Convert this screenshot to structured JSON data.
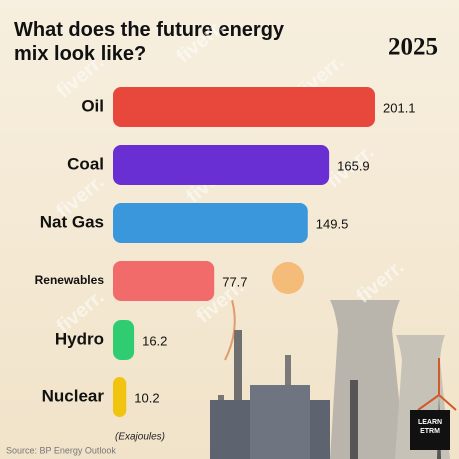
{
  "chart_data": {
    "type": "bar",
    "orientation": "horizontal",
    "title": "What does the future energy mix look like?",
    "year": "2025",
    "categories": [
      "Oil",
      "Coal",
      "Nat Gas",
      "Renewables",
      "Hydro",
      "Nuclear"
    ],
    "values": [
      201.1,
      165.9,
      149.5,
      77.7,
      16.2,
      10.2
    ],
    "colors": [
      "#e8473b",
      "#6a2fd2",
      "#3b97dc",
      "#f26b6b",
      "#2fcc72",
      "#f1c40f"
    ],
    "unit_label": "(Exajoules)",
    "source": "Source: BP Energy Outlook",
    "logo": [
      "LEARN",
      "ETRM"
    ],
    "watermark": "fiverr."
  }
}
